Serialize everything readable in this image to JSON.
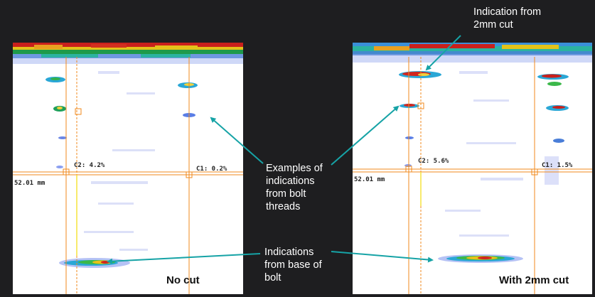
{
  "left_panel": {
    "cursor_c2": "C2: 4.2%",
    "cursor_c1": "C1: 0.2%",
    "depth": "52.01 mm",
    "caption": "No cut"
  },
  "right_panel": {
    "cursor_c2": "C2: 5.6%",
    "cursor_c1": "C1: 1.5%",
    "depth": "52.01 mm",
    "caption": "With 2mm cut"
  },
  "callouts": {
    "cut_indication": [
      "Indication from",
      "2mm cut"
    ],
    "thread_examples": [
      "Examples of",
      "indications",
      "from bolt",
      "threads"
    ],
    "base_indications": [
      "Indications",
      "from base of",
      "bolt"
    ]
  },
  "colors": {
    "background": "#1e1e20",
    "scan_background": "#ffffff",
    "cursor_line": "#f08a1c",
    "gate_line": "#f5e23a",
    "arrow": "#16a3a6",
    "callout_text": "#ffffff"
  }
}
